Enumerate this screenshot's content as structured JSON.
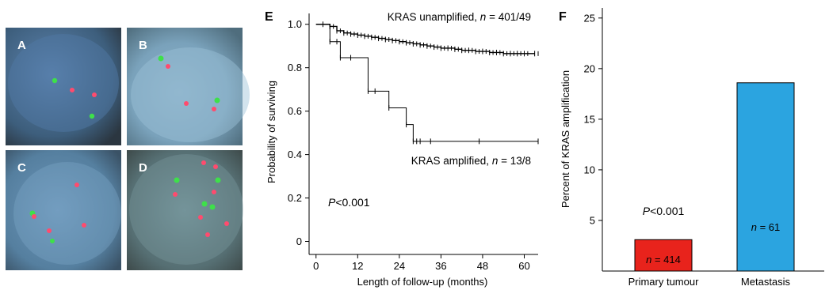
{
  "panels": {
    "A": "A",
    "B": "B",
    "C": "C",
    "D": "D",
    "E": "E",
    "F": "F"
  },
  "colors": {
    "bar_primary": "#e8231c",
    "bar_metastasis": "#2ba4e0",
    "axis": "#000000"
  },
  "chart_data": [
    {
      "type": "line",
      "panel": "E",
      "xlabel": "Length of follow-up (months)",
      "ylabel": "Probability of surviving",
      "xticks": [
        0,
        12,
        24,
        36,
        48,
        60
      ],
      "yticks": [
        0,
        0.2,
        0.4,
        0.6,
        0.8,
        1.0
      ],
      "xlim": [
        -2,
        64
      ],
      "ylim": [
        -0.06,
        1.05
      ],
      "annotation": {
        "prefix": "P",
        "value": "<0.001"
      },
      "series": [
        {
          "name": "KRAS unamplified",
          "n_label": "n",
          "n_value": " = 401/49",
          "x": [
            0,
            4,
            6,
            8,
            10,
            12,
            14,
            16,
            18,
            20,
            22,
            24,
            26,
            28,
            30,
            32,
            34,
            36,
            38,
            40,
            42,
            44,
            46,
            48,
            50,
            52,
            54,
            56,
            58,
            60,
            63
          ],
          "y": [
            1.0,
            0.99,
            0.97,
            0.96,
            0.955,
            0.95,
            0.945,
            0.94,
            0.935,
            0.93,
            0.925,
            0.92,
            0.915,
            0.91,
            0.905,
            0.9,
            0.895,
            0.89,
            0.89,
            0.885,
            0.88,
            0.88,
            0.875,
            0.875,
            0.87,
            0.87,
            0.865,
            0.865,
            0.865,
            0.865,
            0.865
          ]
        },
        {
          "name": "KRAS amplified",
          "n_label": "n",
          "n_value": " = 13/8",
          "x": [
            0,
            2,
            4,
            6,
            7,
            10,
            15,
            17,
            21,
            26,
            28,
            29,
            30,
            33,
            47,
            64
          ],
          "y": [
            1.0,
            1.0,
            0.92,
            0.92,
            0.846,
            0.846,
            0.692,
            0.692,
            0.615,
            0.538,
            0.461,
            0.461,
            0.461,
            0.461,
            0.461,
            0.461
          ]
        }
      ]
    },
    {
      "type": "bar",
      "panel": "F",
      "ylabel": "Percent of KRAS amplification",
      "categories": [
        "Primary tumour",
        "Metastasis"
      ],
      "values": [
        3.1,
        18.6
      ],
      "n_labels": [
        "n",
        "n"
      ],
      "n_values": [
        " = 414",
        " = 61"
      ],
      "yticks": [
        5,
        10,
        15,
        20,
        25
      ],
      "ylim": [
        0,
        26
      ],
      "annotation": {
        "prefix": "P",
        "value": "<0.001"
      }
    }
  ]
}
